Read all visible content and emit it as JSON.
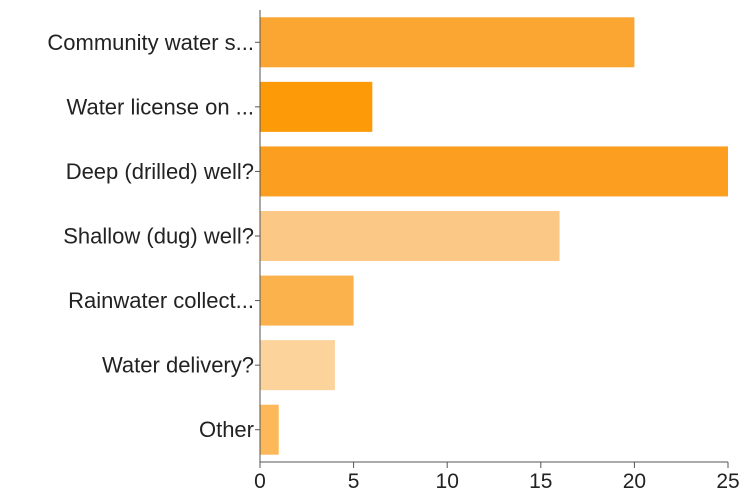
{
  "chart_data": {
    "type": "bar",
    "orientation": "horizontal",
    "categories": [
      "Community water s...",
      "Water license on ...",
      "Deep (drilled) well?",
      "Shallow (dug) well?",
      "Rainwater collect...",
      "Water delivery?",
      "Other"
    ],
    "values": [
      20,
      6,
      25,
      16,
      5,
      4,
      1
    ],
    "colors": [
      "#fba533",
      "#fc9a08",
      "#fc9e1f",
      "#fcc885",
      "#fcb24c",
      "#fcd39b",
      "#fcb859"
    ],
    "title": "",
    "xlabel": "",
    "ylabel": "",
    "xlim": [
      0,
      25
    ],
    "xticks": [
      "0",
      "5",
      "10",
      "15",
      "20",
      "25"
    ],
    "grid": false
  }
}
